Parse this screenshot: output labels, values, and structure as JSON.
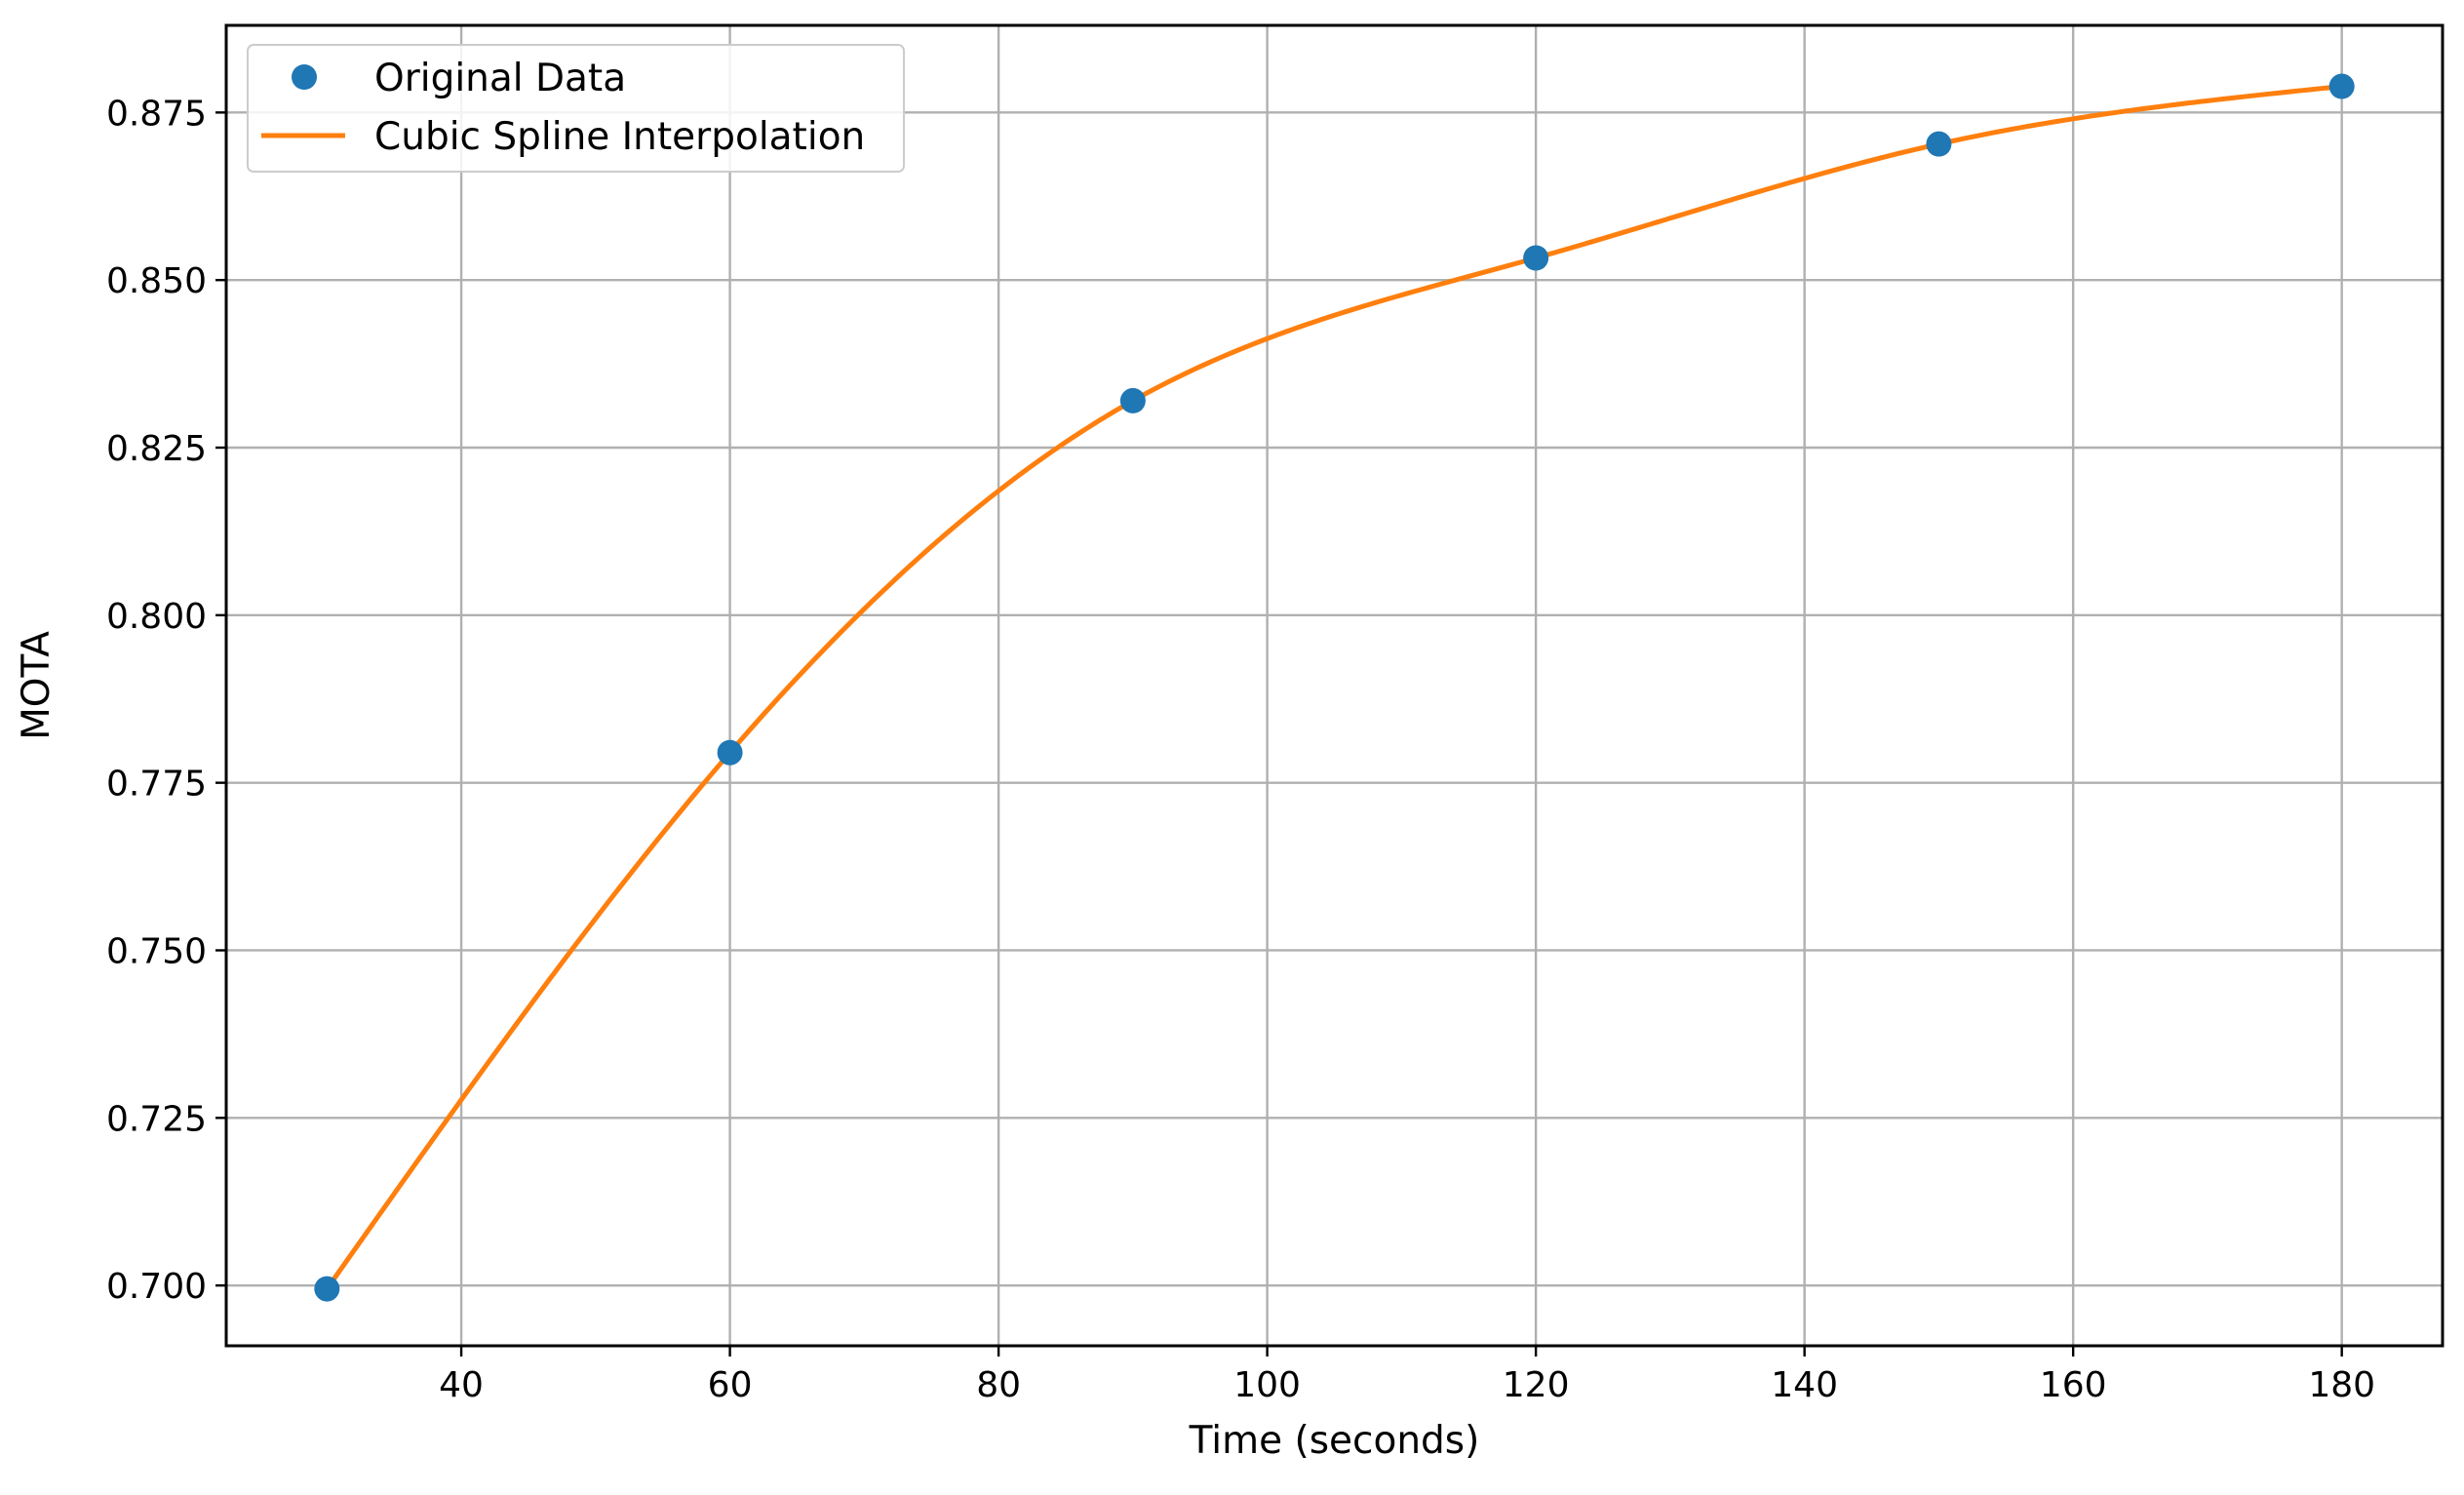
{
  "chart_data": {
    "type": "line",
    "title": "",
    "xlabel": "Time (seconds)",
    "ylabel": "MOTA",
    "xlim": [
      22.5,
      187.5
    ],
    "ylim": [
      0.691,
      0.888
    ],
    "xticks": [
      40,
      60,
      80,
      100,
      120,
      140,
      160,
      180
    ],
    "xtick_labels": [
      "40",
      "60",
      "80",
      "100",
      "120",
      "140",
      "160",
      "180"
    ],
    "yticks": [
      0.7,
      0.725,
      0.75,
      0.775,
      0.8,
      0.825,
      0.85,
      0.875
    ],
    "ytick_labels": [
      "0.700",
      "0.725",
      "0.750",
      "0.775",
      "0.800",
      "0.825",
      "0.850",
      "0.875"
    ],
    "grid": true,
    "legend_position": "top-left",
    "series": [
      {
        "name": "Original Data",
        "kind": "scatter",
        "color": "#1f77b4",
        "x": [
          30,
          60,
          90,
          120,
          150,
          180
        ],
        "y": [
          0.6995,
          0.7795,
          0.832,
          0.8533,
          0.8703,
          0.8789
        ]
      },
      {
        "name": "Cubic Spline Interpolation",
        "kind": "line",
        "color": "#ff7f0e",
        "x": [
          30,
          60,
          90,
          120,
          150,
          180
        ],
        "y": [
          0.6995,
          0.7795,
          0.832,
          0.8533,
          0.8703,
          0.8789
        ]
      }
    ]
  }
}
